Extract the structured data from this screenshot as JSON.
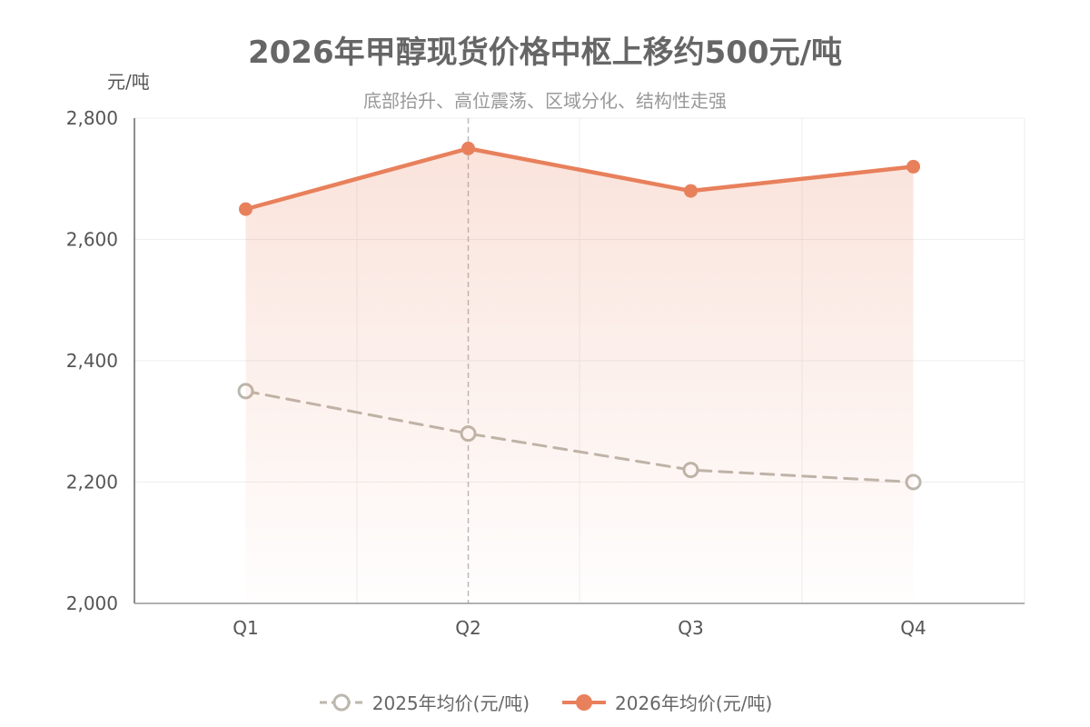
{
  "chart_data": {
    "type": "line",
    "title": "2026年甲醇现货价格中枢上移约500元/吨",
    "subtitle": "底部抬升、高位震荡、区域分化、结构性走强",
    "ylabel": "元/吨",
    "xlabel": "",
    "categories": [
      "Q1",
      "Q2",
      "Q3",
      "Q4"
    ],
    "ylim": [
      2000,
      2800
    ],
    "yticks": [
      2000,
      2200,
      2400,
      2600,
      2800
    ],
    "ytick_labels": [
      "2,000",
      "2,200",
      "2,400",
      "2,600",
      "2,800"
    ],
    "grid": true,
    "legend_position": "bottom",
    "hover_category": "Q2",
    "series": [
      {
        "name": "2025年均价(元/吨)",
        "values": [
          2350,
          2280,
          2220,
          2200
        ],
        "color": "#bcb7ad",
        "style": "dashed",
        "marker": "hollow-circle"
      },
      {
        "name": "2026年均价(元/吨)",
        "values": [
          2650,
          2750,
          2680,
          2720
        ],
        "color": "#e8805c",
        "style": "solid",
        "marker": "filled-circle",
        "area": true
      }
    ]
  }
}
